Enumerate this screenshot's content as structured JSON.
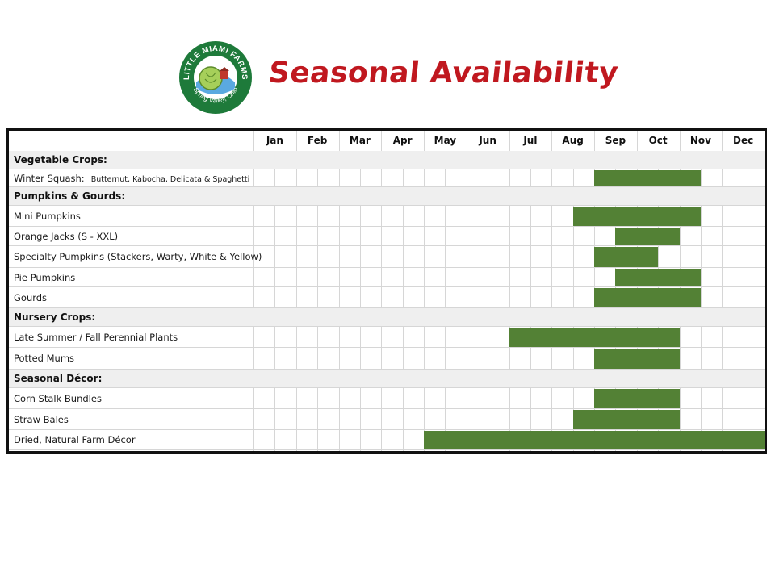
{
  "header": {
    "title": "Seasonal Availability",
    "logo": {
      "brand_text": "LITTLE MIAMI FARMS",
      "location_text": "Spring Valley, Ohio",
      "colors": {
        "ring": "#1e7a3a",
        "inner": "#ffffff",
        "sky": "#5aa9e0",
        "cabbage": "#a6cf5a",
        "barn": "#c0392b"
      }
    }
  },
  "months": [
    "Jan",
    "Feb",
    "Mar",
    "Apr",
    "May",
    "Jun",
    "Jul",
    "Aug",
    "Sep",
    "Oct",
    "Nov",
    "Dec"
  ],
  "colors": {
    "bar": "#538135",
    "section_bg": "#efefef",
    "grid": "#d6d6d6",
    "title": "#c0181f"
  },
  "rows": [
    {
      "type": "section",
      "label": "Vegetable Crops:"
    },
    {
      "type": "item",
      "label": "Winter Squash:",
      "detail": "Butternut, Kabocha, Delicata & Spaghetti",
      "start": 9,
      "end": 11.5
    },
    {
      "type": "section",
      "label": "Pumpkins & Gourds:"
    },
    {
      "type": "item",
      "label": "Mini Pumpkins",
      "start": 8.5,
      "end": 11.5
    },
    {
      "type": "item",
      "label": "Orange Jacks (S - XXL)",
      "start": 9.5,
      "end": 11
    },
    {
      "type": "item",
      "label": "Specialty Pumpkins (Stackers, Warty, White & Yellow)",
      "start": 9,
      "end": 10.5
    },
    {
      "type": "item",
      "label": "Pie Pumpkins",
      "start": 9.5,
      "end": 11.5
    },
    {
      "type": "item",
      "label": "Gourds",
      "start": 9,
      "end": 11.5
    },
    {
      "type": "section",
      "label": "Nursery Crops:"
    },
    {
      "type": "item",
      "label": "Late Summer / Fall Perennial Plants",
      "start": 7,
      "end": 11
    },
    {
      "type": "item",
      "label": "Potted Mums",
      "start": 9,
      "end": 11
    },
    {
      "type": "section",
      "label": "Seasonal Décor:"
    },
    {
      "type": "item",
      "label": "Corn Stalk Bundles",
      "start": 9,
      "end": 11
    },
    {
      "type": "item",
      "label": "Straw Bales",
      "start": 8.5,
      "end": 11
    },
    {
      "type": "item",
      "label": "Dried, Natural Farm Décor",
      "start": 5,
      "end": 13
    }
  ]
}
